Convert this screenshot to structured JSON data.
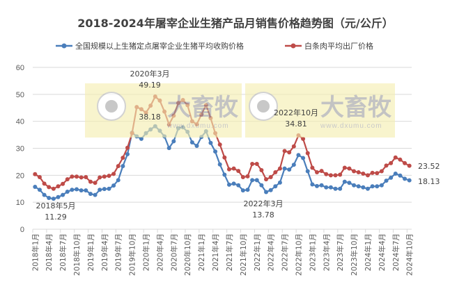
{
  "chart_data": {
    "type": "line",
    "title": "2018-2024年屠宰企业生猪产品月销售价格趋势图（元/公斤）",
    "ylim": [
      0,
      60
    ],
    "yticks": [
      0,
      10,
      20,
      30,
      40,
      50,
      60
    ],
    "grid": true,
    "legend_position": "top",
    "x_tick_labels": [
      "2018年1月",
      "2018年4月",
      "2018年7月",
      "2018年10月",
      "2019年1月",
      "2019年4月",
      "2019年7月",
      "2019年10月",
      "2020年1月",
      "2020年4月",
      "2020年7月",
      "2020年10月",
      "2021年1月",
      "2021年4月",
      "2021年7月",
      "2021年10月",
      "2022年1月",
      "2022年4月",
      "2022年7月",
      "2022年10月",
      "2023年1月",
      "2023年4月",
      "2023年7月",
      "2023年10月",
      "2024年1月",
      "2024年4月",
      "2024年7月",
      "2024年10月"
    ],
    "x_start": "2018年1月",
    "x_end": "2024年10月",
    "series": [
      {
        "name": "全国规模以上生猪定点屠宰企业生猪平均收购价格",
        "color": "#4a7ebb",
        "values": [
          15.7,
          14.6,
          12.7,
          11.6,
          11.29,
          11.9,
          12.7,
          13.9,
          14.6,
          14.8,
          14.4,
          14.4,
          13.1,
          12.7,
          14.6,
          14.9,
          15.0,
          16.2,
          18.2,
          23.4,
          27.8,
          35.8,
          34.4,
          33.5,
          35.6,
          37.0,
          38.18,
          36.5,
          34.4,
          30.1,
          32.6,
          37.4,
          37.8,
          36.1,
          32.2,
          30.9,
          34.2,
          36.3,
          32.0,
          28.8,
          24.0,
          20.2,
          16.5,
          16.9,
          16.3,
          14.4,
          14.6,
          18.2,
          18.2,
          16.3,
          13.78,
          14.5,
          15.9,
          17.3,
          22.5,
          22.1,
          23.9,
          27.5,
          26.4,
          21.5,
          16.6,
          16.0,
          16.3,
          15.5,
          15.5,
          15.0,
          15.0,
          17.6,
          17.2,
          16.3,
          15.9,
          15.5,
          15.0,
          15.9,
          15.9,
          16.3,
          18.0,
          19.1,
          20.6,
          19.9,
          18.7,
          18.13
        ]
      },
      {
        "name": "白条肉平均出厂价格",
        "color": "#be4b48",
        "values": [
          20.4,
          19.3,
          16.9,
          15.6,
          15.0,
          15.9,
          16.8,
          18.5,
          19.5,
          19.5,
          19.2,
          19.3,
          17.6,
          17.2,
          19.2,
          19.5,
          19.8,
          20.5,
          23.4,
          26.5,
          30.2,
          35.6,
          45.3,
          44.5,
          43.2,
          45.8,
          49.19,
          47.7,
          43.6,
          38.8,
          42.1,
          46.8,
          47.9,
          46.0,
          40.0,
          38.9,
          42.5,
          46.0,
          41.2,
          35.6,
          31.4,
          26.6,
          22.2,
          22.5,
          21.6,
          19.3,
          19.6,
          24.2,
          24.2,
          21.9,
          18.5,
          19.3,
          21.1,
          22.5,
          29.0,
          28.5,
          30.7,
          34.81,
          33.5,
          28.2,
          22.8,
          21.1,
          21.6,
          20.4,
          20.0,
          20.0,
          20.2,
          22.8,
          22.5,
          21.5,
          21.1,
          20.6,
          20.0,
          20.9,
          20.8,
          21.5,
          23.6,
          24.5,
          26.6,
          25.8,
          24.5,
          23.52
        ]
      }
    ],
    "annotations": [
      {
        "month": "2018年5月",
        "value": "11.29",
        "series": 0
      },
      {
        "month": "2020年3月",
        "value": "49.19",
        "series": 1
      },
      {
        "month": "",
        "value": "38.18",
        "series": 0
      },
      {
        "month": "2022年3月",
        "value": "13.78",
        "series": 0
      },
      {
        "month": "2022年10月",
        "value": "34.81",
        "series": 1
      },
      {
        "month": "",
        "value": "23.52",
        "series": 1
      },
      {
        "month": "",
        "value": "18.13",
        "series": 0
      }
    ]
  },
  "watermark": {
    "brand": "大畜牧",
    "url": "www.dxumu.com",
    "box_color": "#f5eeb0"
  }
}
